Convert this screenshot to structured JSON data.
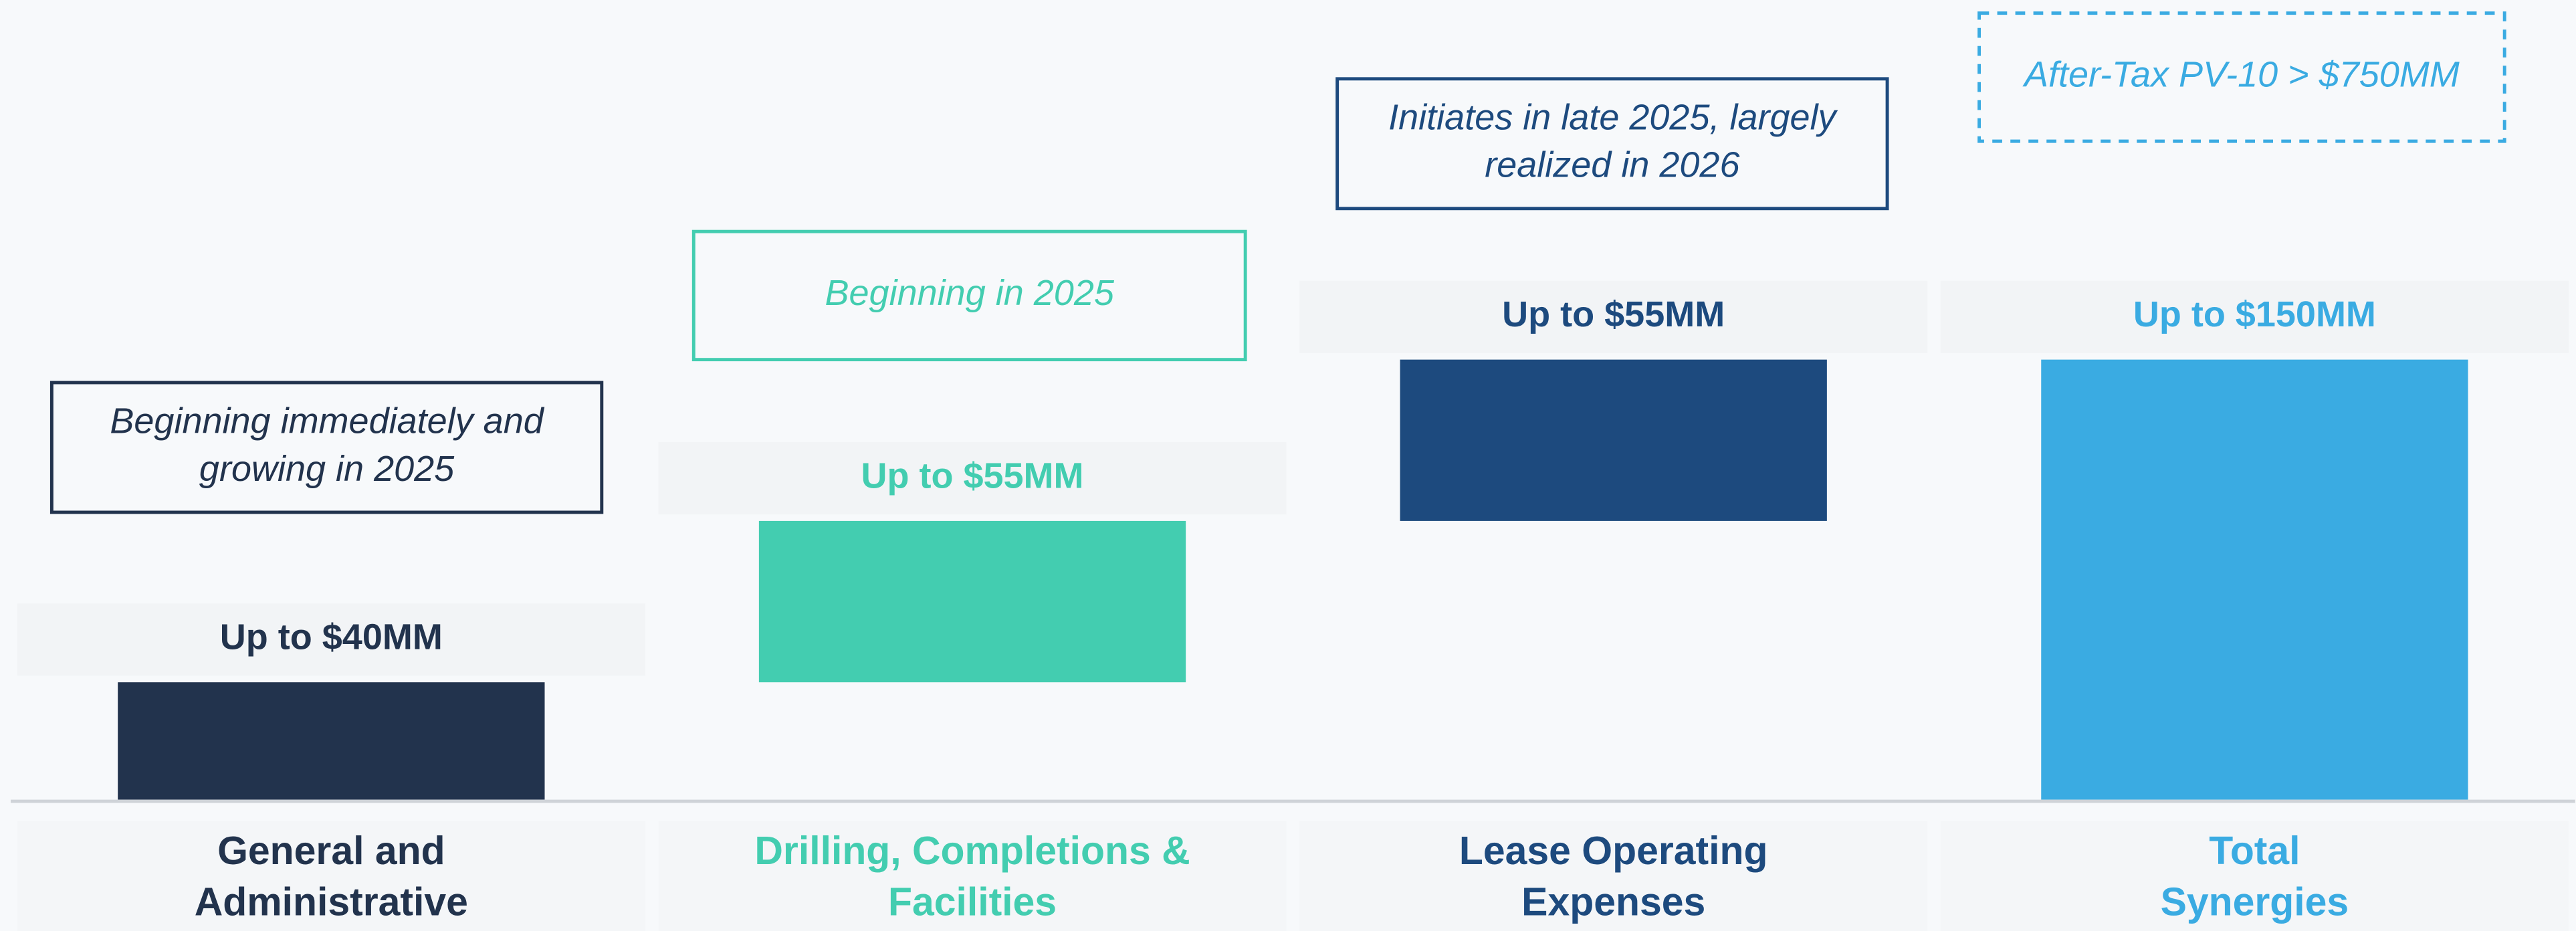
{
  "chart_data": {
    "type": "waterfall",
    "categories": [
      [
        "General and",
        "Administrative"
      ],
      [
        "Drilling, Completions &",
        "Facilities"
      ],
      [
        "Lease Operating",
        "Expenses"
      ],
      [
        "Total",
        "Synergies"
      ]
    ],
    "values": [
      40,
      55,
      55,
      150
    ],
    "value_labels": [
      "Up to $40MM",
      "Up to $55MM",
      "Up to $55MM",
      "Up to $150MM"
    ],
    "is_total": [
      false,
      false,
      false,
      true
    ],
    "colors": [
      "#22334d",
      "#43cdb0",
      "#1d4a7e",
      "#3aabe2"
    ],
    "ylim": [
      0,
      150
    ],
    "annotations": [
      {
        "lines": [
          "Beginning immediately and",
          "growing in 2025"
        ],
        "border": "solid"
      },
      {
        "lines": [
          "Beginning in 2025"
        ],
        "border": "solid"
      },
      {
        "lines": [
          "Initiates in late 2025, largely",
          "realized in 2026"
        ],
        "border": "solid"
      },
      {
        "lines": [
          "After-Tax PV-10 > $750MM"
        ],
        "border": "dashed"
      }
    ]
  }
}
